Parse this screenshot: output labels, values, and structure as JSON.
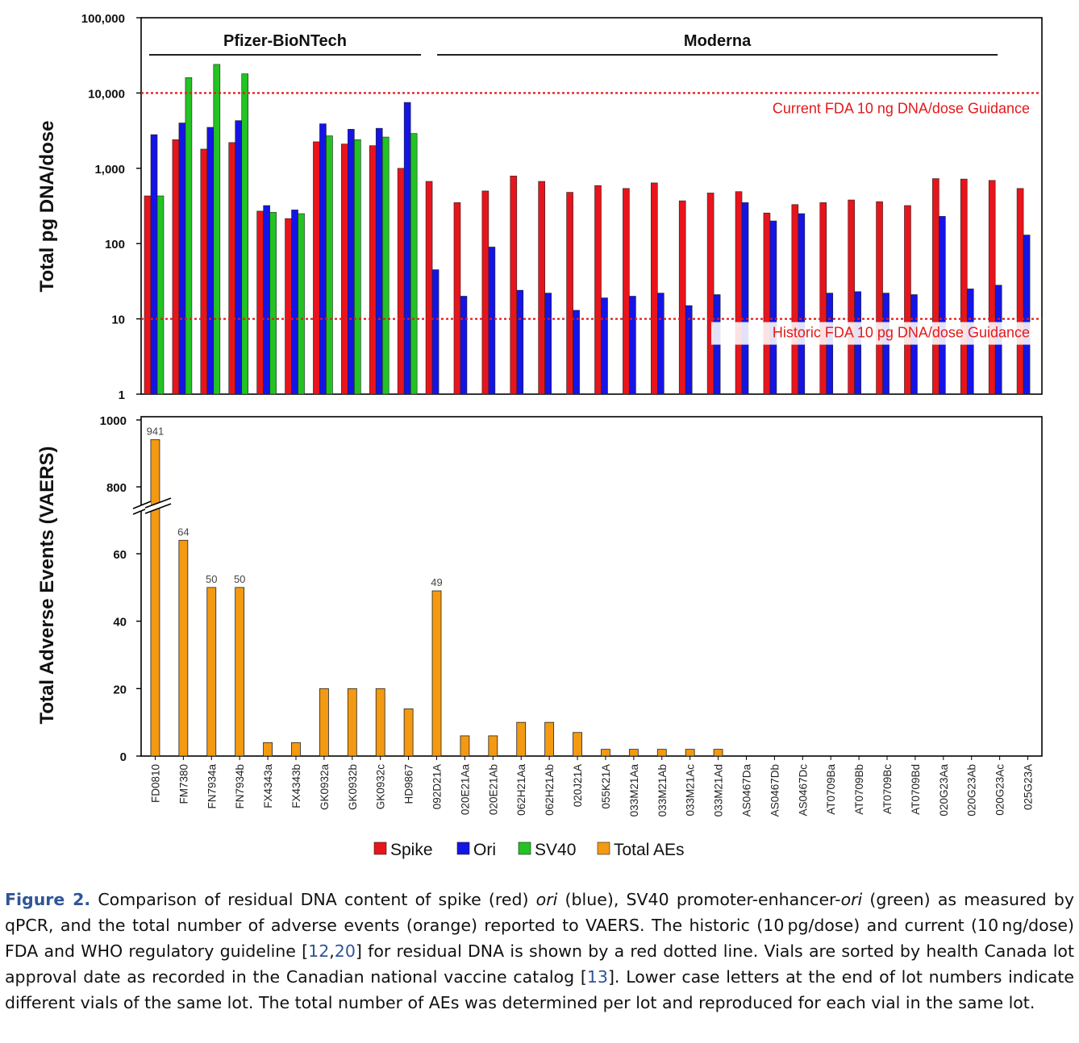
{
  "chart_data": [
    {
      "type": "bar",
      "scale": "log",
      "ylabel": "Total pg DNA/dose",
      "ylim": [
        1,
        100000
      ],
      "yticks": [
        "1",
        "10",
        "100",
        "1,000",
        "10,000",
        "100,000"
      ],
      "groups": [
        {
          "label": "Pfizer-BioNTech",
          "first": 0,
          "last": 9
        },
        {
          "label": "Moderna",
          "first": 10,
          "last": 30
        }
      ],
      "reference_lines": [
        {
          "label": "Current FDA 10 ng DNA/dose Guidance",
          "value": 10000,
          "color": "#e31a1c"
        },
        {
          "label": "Historic FDA 10 pg DNA/dose Guidance",
          "value": 10,
          "color": "#e31a1c"
        }
      ],
      "series": [
        {
          "name": "Spike",
          "color": "#e8141c",
          "values": [
            430,
            2400,
            1800,
            2200,
            270,
            215,
            2250,
            2100,
            2000,
            1000,
            670,
            350,
            500,
            790,
            670,
            480,
            590,
            540,
            640,
            370,
            470,
            490,
            255,
            330,
            350,
            380,
            360,
            320,
            730,
            720,
            690,
            540
          ]
        },
        {
          "name": "Ori",
          "color": "#1414e6",
          "values": [
            2800,
            4000,
            3500,
            4300,
            320,
            280,
            3900,
            3300,
            3400,
            7500,
            45,
            20,
            90,
            24,
            22,
            13,
            19,
            20,
            22,
            15,
            21,
            350,
            200,
            250,
            22,
            23,
            22,
            21,
            230,
            25,
            28,
            130
          ]
        },
        {
          "name": "SV40",
          "color": "#22c322",
          "values": [
            430,
            16000,
            24000,
            18000,
            260,
            250,
            2700,
            2400,
            2600,
            2900,
            null,
            null,
            null,
            null,
            null,
            null,
            null,
            null,
            null,
            null,
            null,
            null,
            null,
            null,
            null,
            null,
            null,
            null,
            null,
            null,
            null,
            null
          ]
        }
      ]
    },
    {
      "type": "bar",
      "scale": "linear-with-break",
      "ylabel": "Total Adverse Events (VAERS)",
      "yticks": [
        "0",
        "20",
        "40",
        "60",
        "800",
        "1000"
      ],
      "axis_break": [
        65,
        780
      ],
      "series": [
        {
          "name": "Total AEs",
          "color": "#f39a12",
          "values": [
            941,
            64,
            50,
            50,
            4,
            4,
            20,
            20,
            20,
            14,
            49,
            6,
            6,
            10,
            10,
            7,
            2,
            2,
            2,
            2,
            2,
            0,
            0,
            0,
            0,
            0,
            0,
            0,
            0,
            0,
            0,
            0
          ]
        }
      ],
      "data_labels": [
        {
          "index": 0,
          "text": "941"
        },
        {
          "index": 1,
          "text": "64"
        },
        {
          "index": 2,
          "text": "50"
        },
        {
          "index": 3,
          "text": "50"
        },
        {
          "index": 10,
          "text": "49"
        }
      ]
    }
  ],
  "categories": [
    "FD0810",
    "FM7380",
    "FN7934a",
    "FN7934b",
    "FX4343a",
    "FX4343b",
    "GK0932a",
    "GK0932b",
    "GK0932c",
    "HD9867",
    "092D21A",
    "020E21Aa",
    "020E21Ab",
    "062H21Aa",
    "062H21Ab",
    "020J21A",
    "055K21A",
    "033M21Aa",
    "033M21Ab",
    "033M21Ac",
    "033M21Ad",
    "AS0467Da",
    "AS0467Db",
    "AS0467Dc",
    "AT0709Ba",
    "AT0709Bb",
    "AT0709Bc",
    "AT0709Bd",
    "020G23Aa",
    "020G23Ab",
    "020G23Ac",
    "025G23A"
  ],
  "legend": [
    {
      "label": "Spike",
      "color": "#e8141c"
    },
    {
      "label": "Ori",
      "color": "#1414e6"
    },
    {
      "label": "SV40",
      "color": "#22c322"
    },
    {
      "label": "Total AEs",
      "color": "#f39a12"
    }
  ],
  "caption": {
    "label": "Figure 2.",
    "p1": " Comparison of residual DNA content of spike (red) ",
    "ori1": "ori",
    "p2": " (blue), SV40 promoter-enhancer-",
    "ori2": "ori",
    "p3": " (green) as measured by qPCR, and the total number of adverse events (orange) reported to VAERS. The historic (10 pg/dose) and current (10 ng/dose) FDA and WHO regulatory guideline [",
    "ref1": "12",
    "comma": ",",
    "ref2": "20",
    "p4": "] for residual DNA is shown by a red dotted line. Vials are sorted by health Canada lot approval date as recorded in the Canadian national vaccine catalog [",
    "ref3": "13",
    "p5": "]. Lower case letters at the end of lot numbers indicate different vials of the same lot. The total number of AEs was determined per lot and reproduced for each vial in the same lot."
  }
}
